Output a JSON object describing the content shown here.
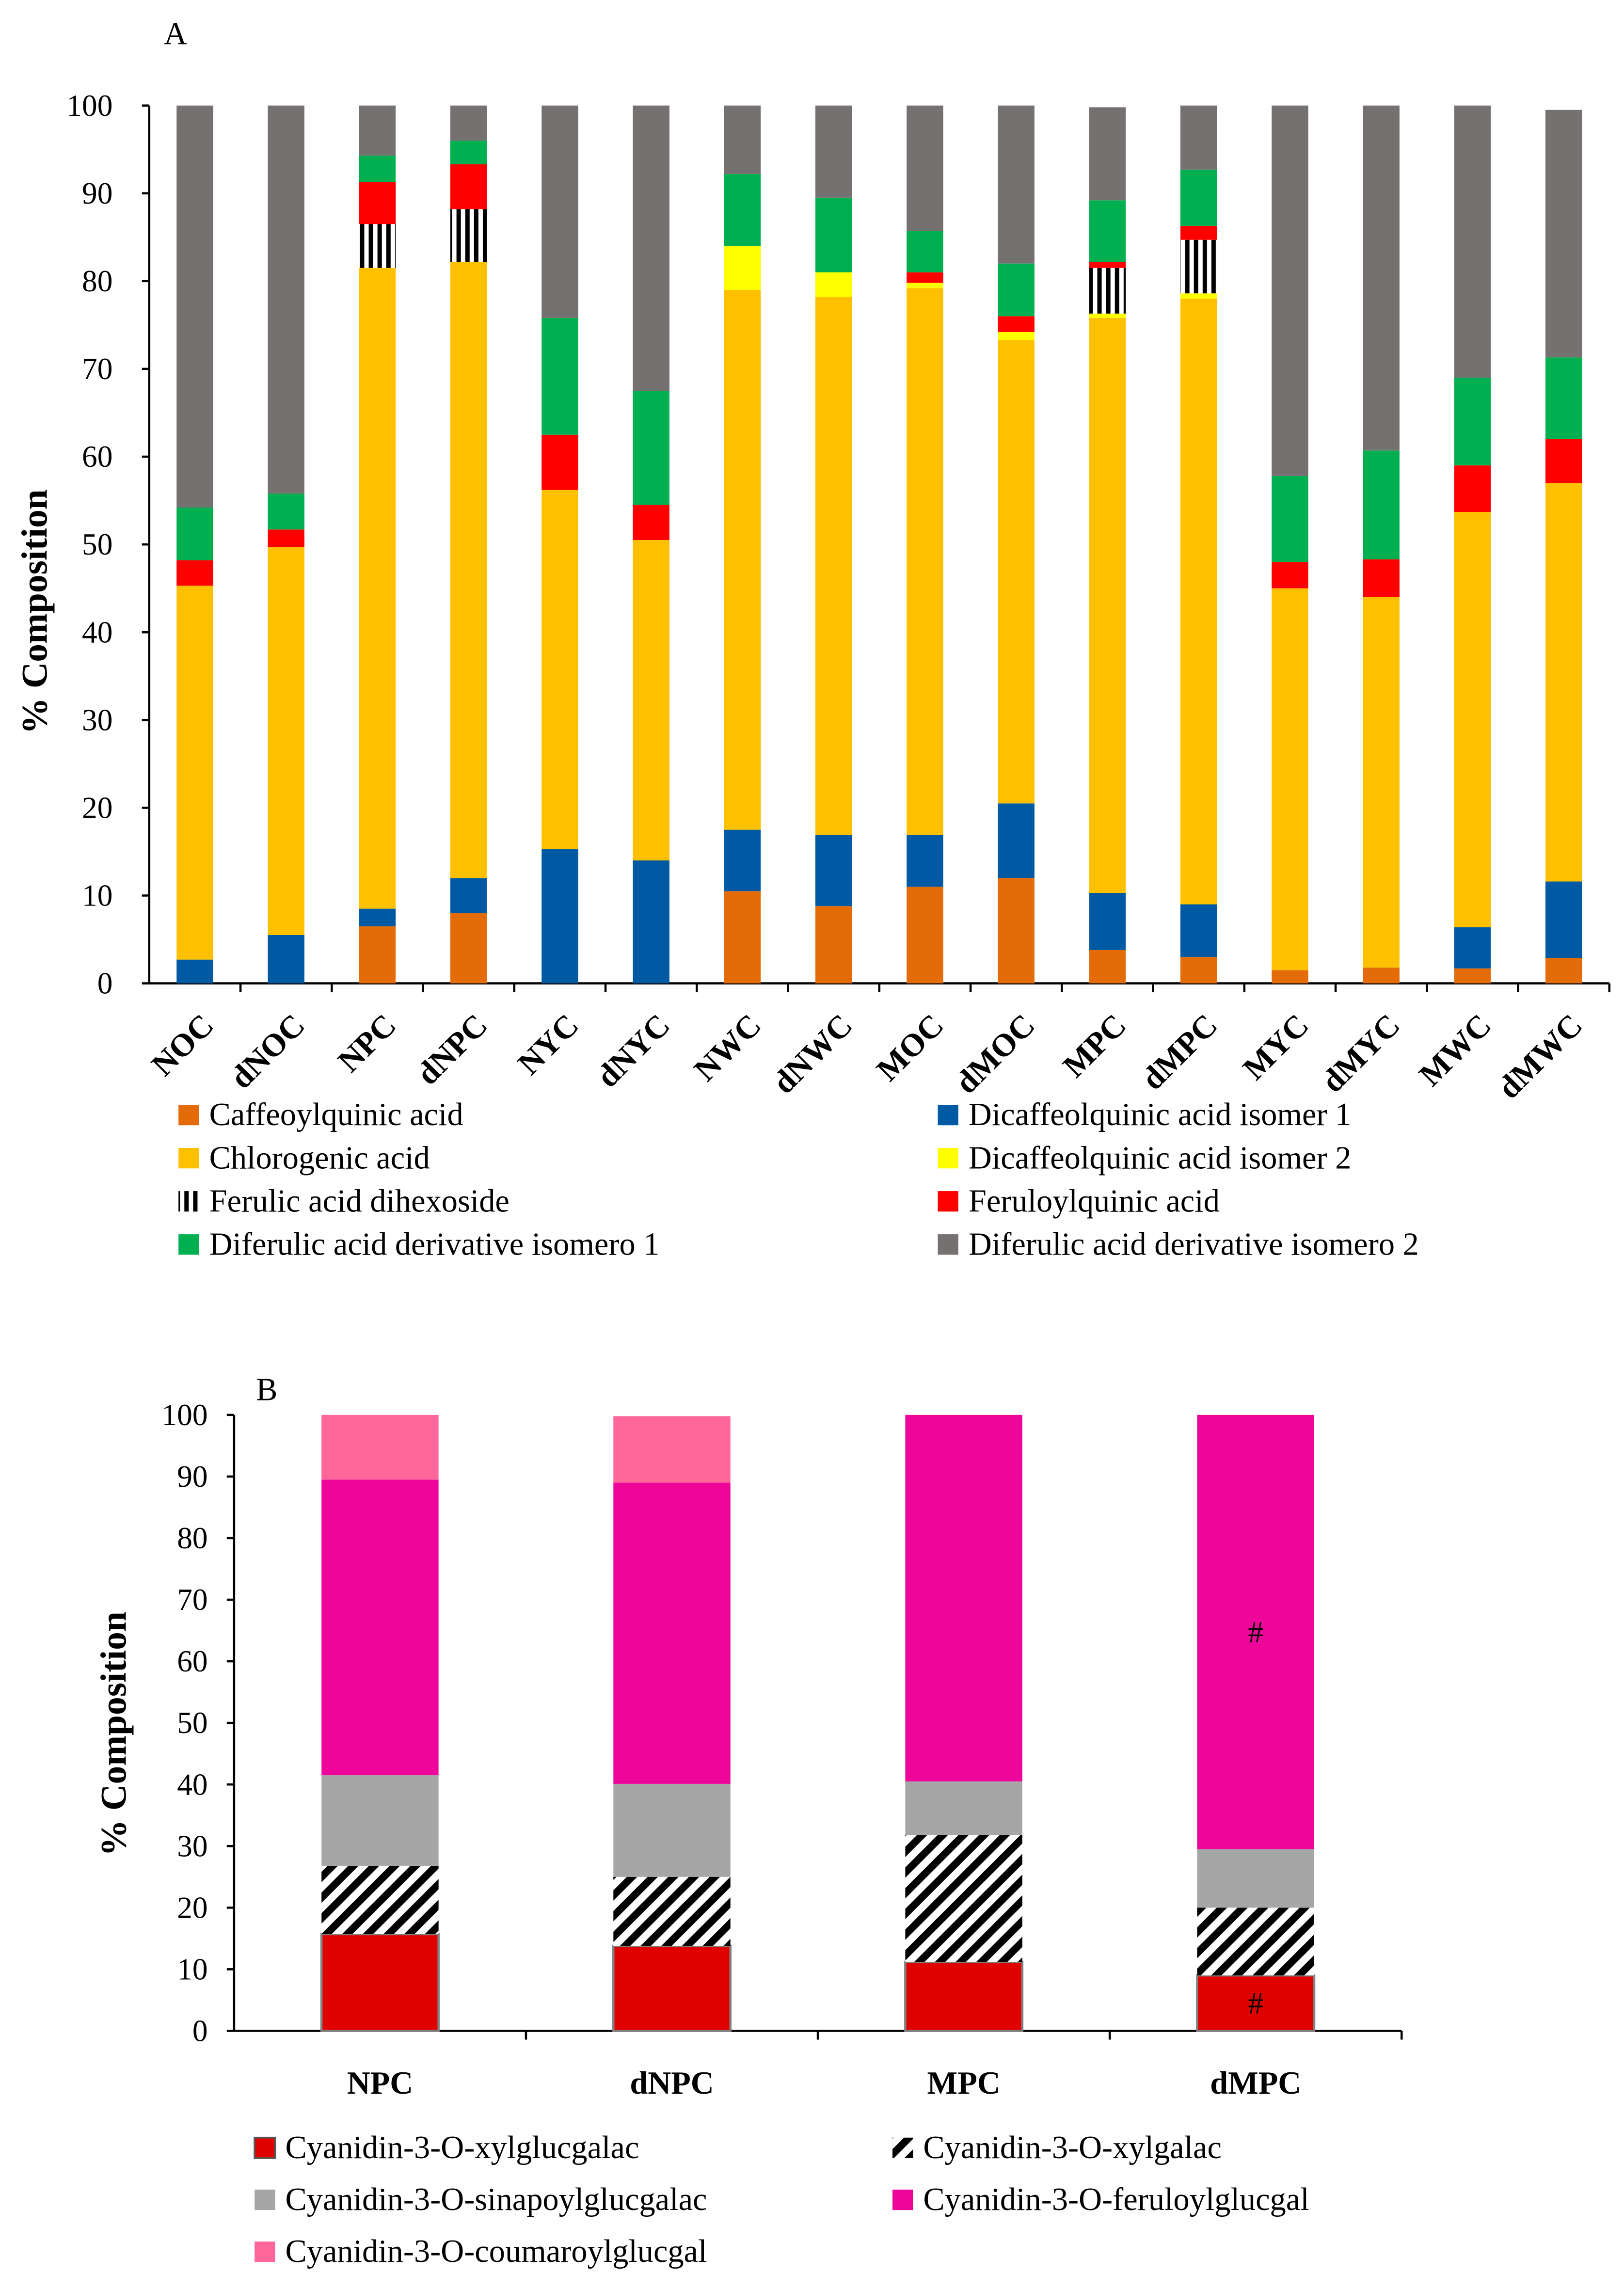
{
  "chart_data": [
    {
      "panel_label": "A",
      "type": "bar",
      "stacked": true,
      "ylabel": "% Composition",
      "ylim": [
        0,
        100
      ],
      "yticks": [
        "0",
        "10",
        "20",
        "30",
        "40",
        "50",
        "60",
        "70",
        "80",
        "90",
        "100"
      ],
      "legend_position": "bottom",
      "categories": [
        "NOC",
        "dNOC",
        "NPC",
        "dNPC",
        "NYC",
        "dNYC",
        "NWC",
        "dNWC",
        "MOC",
        "dMOC",
        "MPC",
        "dMPC",
        "MYC",
        "dMYC",
        "MWC",
        "dMWC"
      ],
      "series": [
        {
          "name": "Caffeoylquinic acid",
          "color": "#E36C09",
          "values": [
            0,
            0,
            6.5,
            8.0,
            0,
            0,
            10.5,
            8.8,
            11.0,
            12.0,
            3.8,
            3.0,
            1.5,
            1.8,
            1.7,
            2.9
          ]
        },
        {
          "name": "Dicaffeolquinic acid isomer 1",
          "color": "#0059A3",
          "values": [
            2.7,
            5.5,
            2.0,
            4.0,
            15.3,
            14.0,
            7.0,
            8.1,
            5.9,
            8.5,
            6.5,
            6.0,
            0,
            0,
            4.7,
            8.7
          ]
        },
        {
          "name": "Chlorogenic acid",
          "color": "#FFC000",
          "values": [
            42.6,
            44.2,
            73.0,
            70.2,
            40.9,
            36.5,
            61.5,
            61.3,
            62.3,
            52.8,
            65.5,
            69.0,
            43.5,
            42.2,
            47.3,
            45.4
          ]
        },
        {
          "name": "Dicaffeolquinic acid isomer 2",
          "color": "#FFFF00",
          "values": [
            0,
            0,
            0,
            0,
            0,
            0,
            5.0,
            2.8,
            0.6,
            0.9,
            0.5,
            0.6,
            0,
            0,
            0,
            0
          ]
        },
        {
          "name": "Ferulic acid dihexoside",
          "color": "pattern-vertical-black",
          "values": [
            0,
            0,
            5.0,
            6.0,
            0,
            0,
            0,
            0,
            0,
            0,
            5.2,
            6.1,
            0,
            0,
            0,
            0
          ]
        },
        {
          "name": "Feruloylquinic acid",
          "color": "#FF0000",
          "values": [
            2.9,
            2.0,
            4.8,
            5.1,
            6.3,
            4.0,
            0,
            0,
            1.2,
            1.8,
            0.7,
            1.6,
            3.0,
            4.3,
            5.3,
            5.0
          ]
        },
        {
          "name": "Diferulic acid derivative isomero 1",
          "color": "#00B050",
          "values": [
            6.0,
            4.1,
            3.0,
            2.7,
            13.3,
            13.0,
            8.2,
            8.5,
            4.7,
            6.0,
            7.0,
            6.4,
            9.8,
            12.4,
            10.0,
            9.3
          ]
        },
        {
          "name": "Diferulic acid derivative isomero 2",
          "color": "#767171",
          "values": [
            45.8,
            44.2,
            5.7,
            4.0,
            24.2,
            32.5,
            7.8,
            10.5,
            14.3,
            18.0,
            10.6,
            7.3,
            42.2,
            39.3,
            31.0,
            28.2
          ]
        }
      ]
    },
    {
      "panel_label": "B",
      "type": "bar",
      "stacked": true,
      "ylabel": "% Composition",
      "ylim": [
        0,
        100
      ],
      "yticks": [
        "0",
        "10",
        "20",
        "30",
        "40",
        "50",
        "60",
        "70",
        "80",
        "90",
        "100"
      ],
      "legend_position": "bottom",
      "categories": [
        "NPC",
        "dNPC",
        "MPC",
        "dMPC"
      ],
      "series": [
        {
          "name": "Cyanidin-3-O-xylglucgalac",
          "color": "#E00000",
          "values": [
            15.7,
            13.8,
            11.2,
            9.0
          ]
        },
        {
          "name": "Cyanidin-3-O-xylgalac",
          "color": "pattern-diagonal-black",
          "values": [
            11.1,
            11.2,
            20.6,
            11.0
          ]
        },
        {
          "name": "Cyanidin-3-O-sinapoylglucgalac",
          "color": "#A6A6A6",
          "values": [
            14.7,
            15.1,
            8.7,
            9.5
          ]
        },
        {
          "name": "Cyanidin-3-O-feruloylglucgal",
          "color": "#EE0599",
          "values": [
            48.0,
            48.9,
            59.5,
            70.5
          ]
        },
        {
          "name": "Cyanidin-3-O-coumaroylglucgal",
          "color": "#FF6699",
          "values": [
            10.5,
            10.8,
            0,
            0
          ]
        }
      ],
      "annotations": [
        {
          "text": "#",
          "category": "dMPC",
          "series": "Cyanidin-3-O-xylglucgalac"
        },
        {
          "text": "#",
          "category": "dMPC",
          "series": "Cyanidin-3-O-feruloylglucgal"
        }
      ]
    }
  ]
}
